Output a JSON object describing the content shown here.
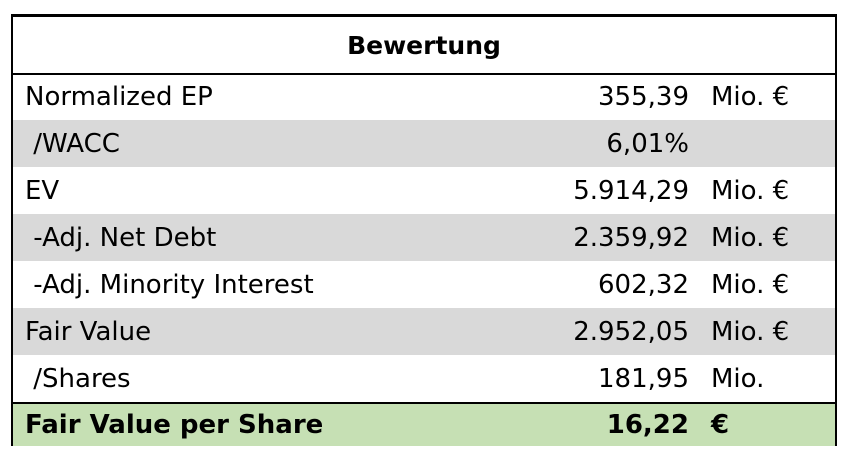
{
  "table": {
    "title": "Bewertung",
    "rows": [
      {
        "label": "Normalized EP",
        "value": "355,39",
        "unit": "Mio. €"
      },
      {
        "label": " /WACC",
        "value": "6,01%",
        "unit": ""
      },
      {
        "label": "EV",
        "value": "5.914,29",
        "unit": "Mio. €"
      },
      {
        "label": " -Adj. Net Debt",
        "value": "2.359,92",
        "unit": "Mio. €"
      },
      {
        "label": " -Adj. Minority Interest",
        "value": "602,32",
        "unit": "Mio. €"
      },
      {
        "label": "Fair Value",
        "value": "2.952,05",
        "unit": "Mio. €"
      },
      {
        "label": " /Shares",
        "value": "181,95",
        "unit": "Mio."
      }
    ],
    "total": {
      "label": "Fair Value per Share",
      "value": "16,22",
      "unit": "€"
    }
  },
  "colors": {
    "row_shade": "#d9d9d9",
    "total_fill": "#c6e0b4",
    "border": "#000000"
  }
}
